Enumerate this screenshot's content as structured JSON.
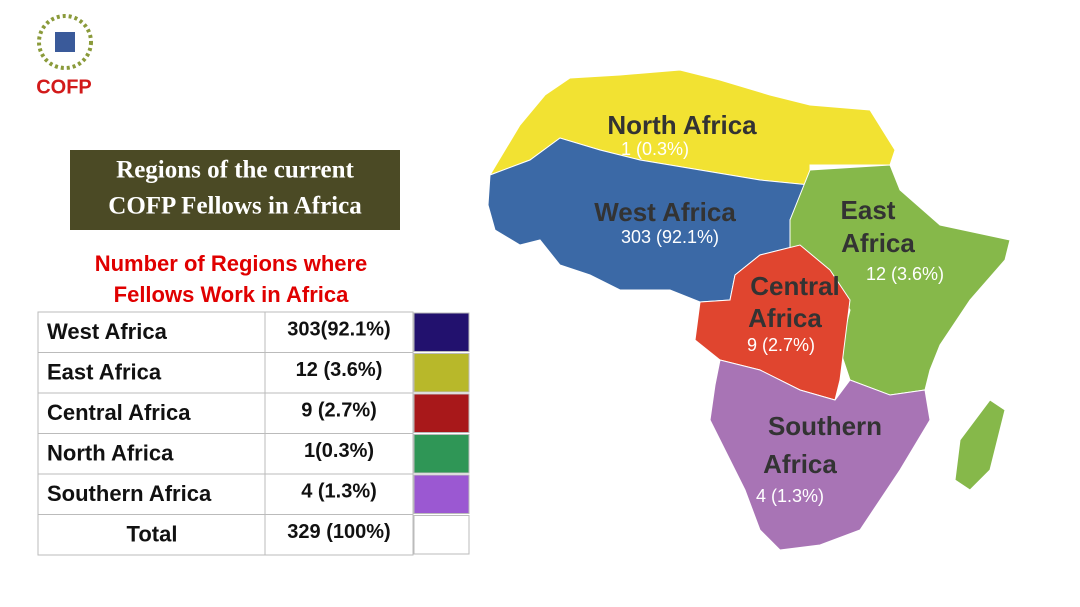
{
  "logo": {
    "text": "COFP"
  },
  "title_lines": [
    "Regions of the current",
    "COFP Fellows in Africa"
  ],
  "subtitle_lines": [
    "Number of Regions where",
    "Fellows Work in Africa"
  ],
  "table": {
    "rows": [
      {
        "region": "West Africa",
        "count": "303(92.1%)",
        "color": "#22116e"
      },
      {
        "region": "East Africa",
        "count": "12 (3.6%)",
        "color": "#b8b82a"
      },
      {
        "region": "Central Africa",
        "count": "9 (2.7%)",
        "color": "#a8181a"
      },
      {
        "region": "North Africa",
        "count": "1(0.3%)",
        "color": "#2f9656"
      },
      {
        "region": "Southern Africa",
        "count": "4 (1.3%)",
        "color": "#9b58d2"
      },
      {
        "region": "Total",
        "count": "329 (100%)",
        "color": "#ffffff"
      }
    ]
  },
  "map": {
    "regions": [
      {
        "name_lines": [
          "North Africa"
        ],
        "value": "1 (0.3%)",
        "color": "#f2e232"
      },
      {
        "name_lines": [
          "West Africa"
        ],
        "value": "303 (92.1%)",
        "color": "#3b69a6"
      },
      {
        "name_lines": [
          "East",
          "Africa"
        ],
        "value": "12 (3.6%)",
        "color": "#86b84a"
      },
      {
        "name_lines": [
          "Central",
          "Africa"
        ],
        "value": "9 (2.7%)",
        "color": "#e0452f"
      },
      {
        "name_lines": [
          "Southern",
          "Africa"
        ],
        "value": "4 (1.3%)",
        "color": "#a874b5"
      }
    ]
  }
}
